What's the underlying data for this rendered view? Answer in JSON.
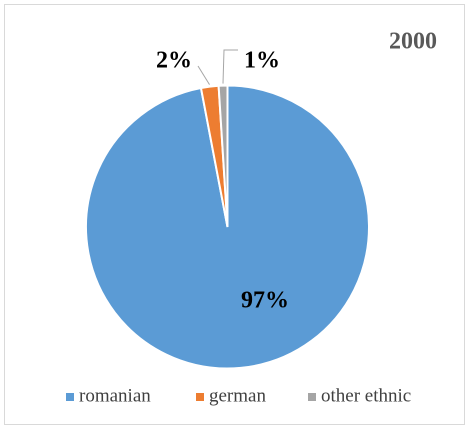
{
  "chart_data": {
    "type": "pie",
    "title": "2000",
    "categories": [
      "romanian",
      "german",
      "other ethnic"
    ],
    "values": [
      97,
      2,
      1
    ],
    "value_labels": [
      "97%",
      "2%",
      "1%"
    ],
    "colors": [
      "#5b9bd5",
      "#ed7d31",
      "#a5a5a5"
    ],
    "legend": "bottom"
  }
}
